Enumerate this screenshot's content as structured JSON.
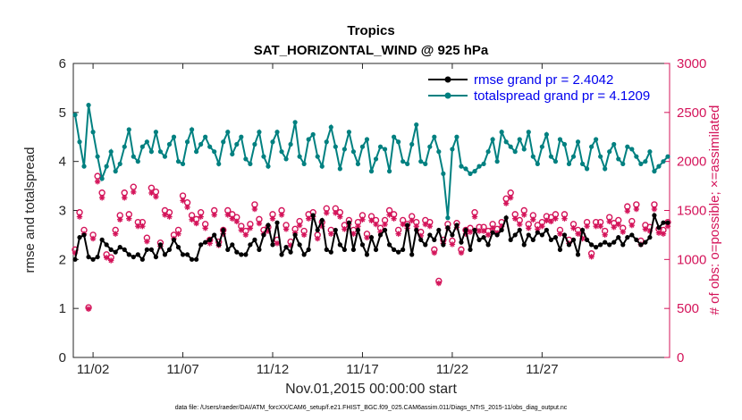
{
  "chart_data": {
    "type": "line",
    "title": "Tropics",
    "subtitle": "SAT_HORIZONTAL_WIND @ 925 hPa",
    "xlabel": "Nov.01,2015 00:00:00 start",
    "ylabel_left": "rmse and totalspread",
    "ylabel_right": "# of obs: o=possible; ×=assimilated",
    "footer": "data file: /Users/raeder/DAI/ATM_forcXX/CAM6_setup/f.e21.FHIST_BGC.f09_025.CAM6assim.011/Diags_NTrS_2015-11/obs_diag_output.nc",
    "x_ticks": [
      "11/02",
      "11/07",
      "11/12",
      "11/17",
      "11/22",
      "11/27"
    ],
    "y_left_ticks": [
      "0",
      "1",
      "2",
      "3",
      "4",
      "5",
      "6"
    ],
    "y_right_ticks": [
      "0",
      "500",
      "1000",
      "1500",
      "2000",
      "2500",
      "3000"
    ],
    "ylim_left": [
      0,
      6
    ],
    "ylim_right": [
      0,
      3000
    ],
    "legend": [
      "rmse grand pr = 2.4042",
      "totalspread grand pr = 4.1209"
    ],
    "series": [
      {
        "name": "rmse",
        "color": "#000000",
        "axis": "left",
        "values": [
          2.0,
          2.45,
          2.5,
          2.05,
          2.0,
          2.05,
          2.4,
          2.3,
          2.2,
          2.15,
          2.25,
          2.2,
          2.1,
          2.05,
          2.1,
          2.0,
          2.2,
          2.2,
          2.05,
          2.3,
          2.1,
          2.2,
          2.4,
          2.25,
          2.1,
          2.1,
          2.0,
          2.0,
          2.3,
          2.35,
          2.4,
          2.5,
          2.3,
          2.6,
          2.2,
          2.3,
          2.15,
          2.1,
          2.1,
          2.3,
          2.4,
          2.2,
          2.5,
          2.7,
          2.3,
          2.75,
          2.1,
          2.25,
          2.15,
          2.5,
          2.3,
          2.1,
          2.2,
          2.9,
          2.6,
          2.8,
          2.2,
          2.15,
          2.6,
          2.3,
          2.2,
          2.75,
          2.2,
          2.6,
          2.3,
          2.1,
          2.45,
          2.2,
          2.5,
          2.6,
          2.3,
          2.2,
          2.15,
          2.2,
          2.7,
          2.1,
          2.6,
          2.4,
          2.3,
          2.5,
          2.4,
          2.6,
          2.3,
          2.65,
          2.5,
          2.7,
          2.35,
          2.6,
          2.2,
          2.6,
          2.4,
          2.45,
          2.3,
          2.55,
          2.5,
          2.6,
          2.85,
          2.4,
          2.5,
          2.6,
          2.3,
          2.5,
          2.4,
          2.55,
          2.5,
          2.6,
          2.4,
          2.45,
          2.2,
          2.5,
          2.3,
          2.4,
          2.1,
          2.6,
          2.4,
          2.3,
          2.25,
          2.3,
          2.35,
          2.3,
          2.35,
          2.45,
          2.3,
          2.45,
          2.5,
          2.4,
          2.3,
          2.35,
          2.45,
          2.9,
          2.65,
          2.75,
          2.75
        ]
      },
      {
        "name": "totalspread",
        "color": "#008080",
        "axis": "left",
        "values": [
          4.95,
          4.4,
          3.9,
          5.15,
          4.6,
          4.1,
          3.65,
          3.9,
          4.2,
          3.8,
          3.95,
          4.3,
          4.65,
          4.1,
          4.0,
          4.3,
          4.4,
          4.2,
          4.6,
          4.2,
          4.1,
          4.35,
          4.5,
          4.0,
          3.95,
          4.4,
          4.65,
          4.2,
          4.35,
          4.5,
          4.3,
          4.2,
          3.95,
          4.4,
          4.6,
          4.15,
          4.35,
          4.5,
          4.05,
          3.95,
          4.35,
          4.6,
          4.1,
          3.9,
          4.4,
          4.6,
          4.2,
          4.05,
          4.35,
          4.8,
          4.1,
          3.95,
          4.45,
          4.55,
          4.1,
          3.9,
          4.4,
          4.7,
          4.3,
          3.85,
          4.25,
          4.6,
          4.2,
          3.95,
          4.3,
          4.45,
          3.8,
          4.05,
          4.3,
          4.25,
          3.8,
          4.5,
          4.4,
          4.0,
          3.95,
          4.35,
          4.75,
          4.0,
          3.95,
          4.3,
          4.5,
          4.2,
          3.75,
          2.85,
          4.25,
          4.5,
          3.9,
          3.85,
          3.75,
          3.8,
          3.9,
          3.95,
          4.2,
          4.45,
          4.0,
          4.6,
          4.4,
          4.3,
          4.2,
          4.45,
          4.25,
          4.6,
          4.1,
          3.95,
          4.3,
          4.55,
          4.1,
          4.0,
          4.45,
          4.35,
          3.95,
          4.1,
          4.4,
          3.95,
          3.85,
          4.3,
          4.45,
          4.1,
          3.85,
          4.2,
          4.35,
          4.05,
          3.95,
          4.3,
          4.25,
          4.1,
          3.95,
          4.0,
          4.2,
          3.8,
          3.9,
          4.0,
          4.1
        ]
      },
      {
        "name": "obs possible",
        "color": "#d4145a",
        "axis": "right",
        "marker": "o",
        "values": [
          1100,
          1480,
          1300,
          510,
          1250,
          1850,
          1680,
          1050,
          1020,
          1300,
          1450,
          1680,
          1460,
          1740,
          1380,
          1380,
          1220,
          1730,
          1690,
          1170,
          1500,
          1480,
          1250,
          1300,
          1650,
          1580,
          1450,
          1410,
          1480,
          1360,
          1200,
          1500,
          1180,
          1300,
          1500,
          1460,
          1430,
          1340,
          1290,
          1360,
          1560,
          1410,
          1300,
          1330,
          1460,
          1200,
          1500,
          1350,
          1180,
          1310,
          1390,
          1290,
          1460,
          1480,
          1250,
          1380,
          1520,
          1300,
          1520,
          1480,
          1350,
          1400,
          1300,
          1380,
          1450,
          1260,
          1440,
          1400,
          1320,
          1400,
          1500,
          1460,
          1300,
          1400,
          1360,
          1440,
          1380,
          1280,
          1400,
          1380,
          1100,
          780,
          1200,
          1360,
          1190,
          1370,
          1100,
          1300,
          1320,
          1480,
          1330,
          1330,
          1290,
          1360,
          1310,
          1380,
          1620,
          1680,
          1460,
          1400,
          1500,
          1360,
          1450,
          1350,
          1380,
          1440,
          1430,
          1460,
          1300,
          1460,
          1200,
          1360,
          1300,
          1250,
          1380,
          1060,
          1380,
          1380,
          1290,
          1430,
          1370,
          1400,
          1320,
          1540,
          1390,
          1560,
          1190,
          1350,
          1330,
          1560,
          1310,
          1300,
          1380
        ]
      }
    ]
  }
}
